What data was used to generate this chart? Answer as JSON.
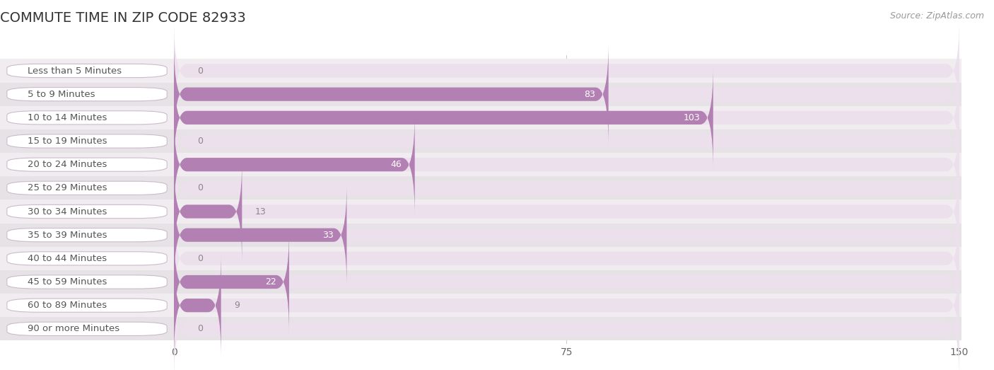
{
  "title": "COMMUTE TIME IN ZIP CODE 82933",
  "source": "Source: ZipAtlas.com",
  "categories": [
    "Less than 5 Minutes",
    "5 to 9 Minutes",
    "10 to 14 Minutes",
    "15 to 19 Minutes",
    "20 to 24 Minutes",
    "25 to 29 Minutes",
    "30 to 34 Minutes",
    "35 to 39 Minutes",
    "40 to 44 Minutes",
    "45 to 59 Minutes",
    "60 to 89 Minutes",
    "90 or more Minutes"
  ],
  "values": [
    0,
    83,
    103,
    0,
    46,
    0,
    13,
    33,
    0,
    22,
    9,
    0
  ],
  "xlim": [
    0,
    150
  ],
  "xticks": [
    0,
    75,
    150
  ],
  "bar_color_full": "#b380b3",
  "bar_bg_color": "#ede0ed",
  "row_bg_even": "#f0ecf0",
  "row_bg_odd": "#e6e2e6",
  "label_bg_color": "#ffffff",
  "label_border_color": "#ccbbcc",
  "title_color": "#333333",
  "label_color": "#555555",
  "value_color_inside": "#ffffff",
  "value_color_outside": "#888888",
  "source_color": "#999999",
  "background_color": "#ffffff",
  "gridline_color": "#cccccc",
  "title_fontsize": 14,
  "label_fontsize": 9.5,
  "value_fontsize": 9,
  "source_fontsize": 9,
  "tick_fontsize": 10
}
